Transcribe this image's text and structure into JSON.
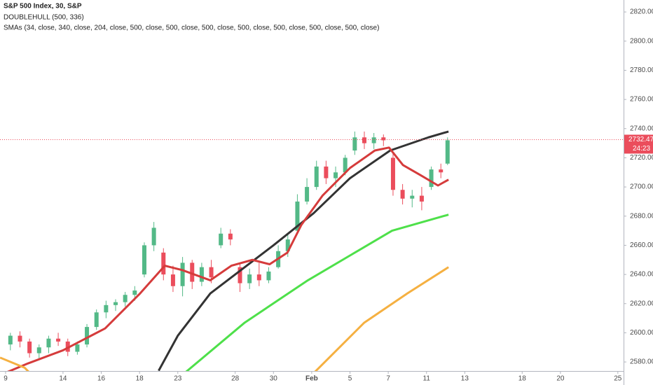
{
  "chart_data": {
    "type": "candlestick",
    "title": "S&P 500 Index, 30, S&P",
    "indicators": [
      "DOUBLEHULL (500, 336)",
      "SMAs (34, close, 340, close, 204, close, 500, close, 500, close, 500, close, 500, close, 500, close, 500, close, 500, close)"
    ],
    "up_color": "#53b987",
    "down_color": "#eb4d5c",
    "x": [
      0.25,
      0.75,
      1.25,
      1.75,
      2.25,
      2.75,
      3.25,
      3.75,
      4.25,
      4.75,
      5.25,
      5.75,
      6.25,
      6.75,
      7.25,
      7.75,
      8.25,
      8.75,
      9.25,
      9.75,
      10.25,
      10.75,
      11.25,
      11.75,
      12.25,
      12.75,
      13.25,
      13.75,
      14.25,
      14.75,
      15.25,
      15.75,
      16.25,
      16.75,
      17.25,
      17.75,
      18.25,
      18.75,
      19.25,
      19.75,
      20.25,
      20.75,
      21.25,
      21.75,
      22.25,
      22.75,
      23.1
    ],
    "open": [
      2592,
      2598,
      2594,
      2586,
      2590,
      2596,
      2594,
      2587,
      2592,
      2604,
      2614,
      2619,
      2621,
      2626,
      2640,
      2660,
      2655,
      2640,
      2632,
      2648,
      2635,
      2645,
      2660,
      2668,
      2645,
      2634,
      2640,
      2636,
      2645,
      2656,
      2670,
      2690,
      2700,
      2714,
      2706,
      2710,
      2725,
      2734,
      2730,
      2734,
      2720,
      2698,
      2692,
      2694,
      2700,
      2712,
      2716
    ],
    "high": [
      2600,
      2601,
      2596,
      2592,
      2598,
      2600,
      2596,
      2594,
      2606,
      2616,
      2622,
      2623,
      2628,
      2632,
      2662,
      2676,
      2658,
      2646,
      2652,
      2650,
      2648,
      2650,
      2672,
      2671,
      2648,
      2644,
      2648,
      2645,
      2660,
      2668,
      2695,
      2706,
      2718,
      2718,
      2714,
      2722,
      2738,
      2738,
      2737,
      2736,
      2724,
      2702,
      2698,
      2700,
      2714,
      2716,
      2734
    ],
    "low": [
      2588,
      2590,
      2583,
      2582,
      2586,
      2591,
      2584,
      2585,
      2590,
      2602,
      2610,
      2615,
      2618,
      2622,
      2638,
      2656,
      2636,
      2628,
      2625,
      2630,
      2632,
      2634,
      2658,
      2660,
      2628,
      2630,
      2632,
      2634,
      2644,
      2652,
      2668,
      2688,
      2698,
      2702,
      2700,
      2708,
      2722,
      2726,
      2726,
      2728,
      2694,
      2688,
      2686,
      2684,
      2698,
      2706,
      2715
    ],
    "close": [
      2598,
      2594,
      2586,
      2590,
      2596,
      2594,
      2587,
      2592,
      2604,
      2614,
      2619,
      2621,
      2626,
      2629,
      2660,
      2672,
      2640,
      2632,
      2648,
      2635,
      2645,
      2638,
      2668,
      2664,
      2634,
      2640,
      2636,
      2642,
      2656,
      2664,
      2690,
      2700,
      2714,
      2706,
      2710,
      2720,
      2734,
      2730,
      2734,
      2732,
      2698,
      2692,
      2694,
      2690,
      2712,
      2710,
      2732
    ],
    "lines": [
      {
        "color": "#333333",
        "x": [
          8.0,
          9.0,
          10.7,
          14.0,
          16.1,
          18.0,
          20.1,
          22.1,
          23.15
        ],
        "values": [
          2574,
          2598,
          2627,
          2660,
          2682,
          2706,
          2725,
          2734,
          2738
        ]
      },
      {
        "color": "#d53b3b",
        "x": [
          -0.29,
          1.17,
          3.0,
          5.2,
          7.03,
          8.32,
          9.23,
          10.7,
          11.8,
          12.9,
          13.8,
          14.73,
          15.46,
          16.56,
          18.0,
          19.3,
          20.04,
          20.77,
          21.7,
          22.6,
          23.15
        ],
        "values": [
          2571,
          2579,
          2588,
          2603,
          2627,
          2646,
          2643,
          2636,
          2646,
          2650,
          2647,
          2655,
          2674,
          2694,
          2713,
          2725,
          2727,
          2715,
          2708,
          2701,
          2705
        ]
      },
      {
        "color": "#4ee04a",
        "x": [
          9.23,
          12.5,
          15.8,
          18.0,
          20.2,
          23.15
        ],
        "values": [
          2571,
          2607,
          2636,
          2653,
          2670,
          2681
        ]
      },
      {
        "color": "#f5b041",
        "x": [
          -0.29,
          1.0,
          1.3
        ],
        "values": [
          2583,
          2576,
          2572
        ]
      },
      {
        "color": "#f5b041",
        "x": [
          16.0,
          18.75,
          21.0,
          23.15
        ],
        "values": [
          2571,
          2607,
          2627,
          2645
        ]
      }
    ],
    "last_price": 2732.47,
    "last_price_color": "#eb4d5c",
    "countdown": "24:23",
    "xlim": [
      -0.293,
      32.3
    ],
    "xticks": [
      {
        "value": 0,
        "label": "9"
      },
      {
        "value": 3,
        "label": "14"
      },
      {
        "value": 5,
        "label": "16"
      },
      {
        "value": 7,
        "label": "18"
      },
      {
        "value": 9,
        "label": "23"
      },
      {
        "value": 12,
        "label": "28"
      },
      {
        "value": 14,
        "label": "30"
      },
      {
        "value": 16,
        "label": "Feb"
      },
      {
        "value": 18,
        "label": "5"
      },
      {
        "value": 20,
        "label": "7"
      },
      {
        "value": 22,
        "label": "11"
      },
      {
        "value": 24,
        "label": "13"
      },
      {
        "value": 27,
        "label": "18"
      },
      {
        "value": 29,
        "label": "20"
      },
      {
        "value": 32,
        "label": "25"
      }
    ],
    "ylim": [
      2573.8,
      2828.2
    ],
    "yticks": [
      {
        "value": 2580,
        "label": "2580.00"
      },
      {
        "value": 2600,
        "label": "2600.00"
      },
      {
        "value": 2620,
        "label": "2620.00"
      },
      {
        "value": 2640,
        "label": "2640.00"
      },
      {
        "value": 2660,
        "label": "2660.00"
      },
      {
        "value": 2680,
        "label": "2680.00"
      },
      {
        "value": 2700,
        "label": "2700.00"
      },
      {
        "value": 2720,
        "label": "2720.00"
      },
      {
        "value": 2740,
        "label": "2740.00"
      },
      {
        "value": 2760,
        "label": "2760.00"
      },
      {
        "value": 2780,
        "label": "2780.00"
      },
      {
        "value": 2800,
        "label": "2800.00"
      },
      {
        "value": 2820,
        "label": "2820.00"
      }
    ]
  }
}
